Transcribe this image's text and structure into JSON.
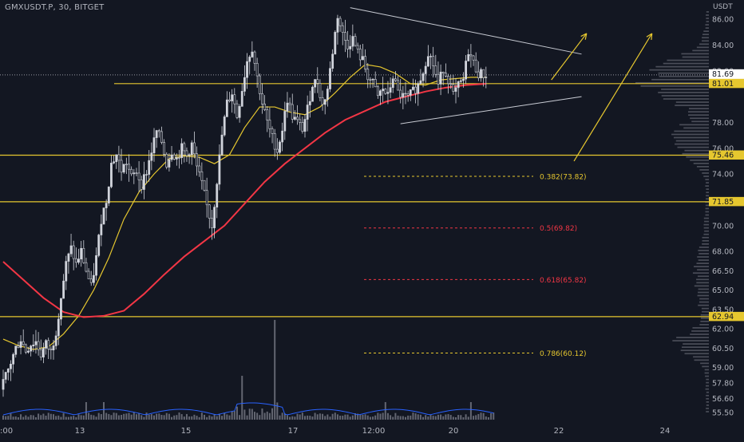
{
  "header": {
    "symbol_line": "GMXUSDT.P, 30, BITGET",
    "axis_unit": "USDT"
  },
  "colors": {
    "background": "#131722",
    "bull": "#d1d4dc",
    "bear": "#d1d4dc",
    "ma_fast": "#e6c72f",
    "ma_slow": "#f23645",
    "horizontal_levels": "#e6c72f",
    "fib_red": "#f23645",
    "fib_yellow": "#e6c72f",
    "trendline": "#c9ccd4",
    "arrow": "#e6c72f",
    "volume": "#787b86",
    "volume_ma": "#2962ff",
    "profile": "#5d606b"
  },
  "chart_data": {
    "type": "candlestick",
    "title": "GMXUSDT.P, 30, BITGET",
    "ylabel": "USDT",
    "ylim": [
      55.2,
      87.0
    ],
    "y_ticks": [
      86.0,
      84.0,
      82.0,
      78.0,
      76.0,
      74.0,
      72.0,
      70.0,
      68.0,
      66.5,
      65.0,
      63.5,
      62.0,
      60.5,
      59.0,
      57.8,
      56.6,
      55.5
    ],
    "x_ticks": [
      ":00",
      "13",
      "15",
      "17",
      "12:00",
      "20",
      "22",
      "24"
    ],
    "price_labels": [
      {
        "value": "81.69",
        "role": "last-price"
      },
      {
        "value": "08:26",
        "role": "countdown"
      },
      {
        "value": "81.01",
        "role": "level"
      },
      {
        "value": "75.46",
        "role": "level"
      },
      {
        "value": "71.85",
        "role": "level"
      },
      {
        "value": "62.94",
        "role": "level"
      }
    ],
    "horizontal_levels": [
      81.01,
      75.46,
      71.85,
      62.94
    ],
    "fib_levels": [
      {
        "label": "0.382(73.82)",
        "value": 73.82,
        "color": "yellow"
      },
      {
        "label": "0.5(69.82)",
        "value": 69.82,
        "color": "red"
      },
      {
        "label": "0.618(65.82)",
        "value": 65.82,
        "color": "red"
      },
      {
        "label": "0.786(60.12)",
        "value": 60.12,
        "color": "yellow"
      }
    ],
    "last_price": 81.69,
    "price_path": [
      [
        0,
        57.3
      ],
      [
        3,
        58.8
      ],
      [
        6,
        60.5
      ],
      [
        8,
        61.2
      ],
      [
        10,
        60.3
      ],
      [
        12,
        60.8
      ],
      [
        14,
        61.0
      ],
      [
        16,
        60.0
      ],
      [
        18,
        60.8
      ],
      [
        20,
        60.2
      ],
      [
        22,
        61.8
      ],
      [
        24,
        64.5
      ],
      [
        26,
        67.0
      ],
      [
        28,
        68.2
      ],
      [
        30,
        67.0
      ],
      [
        32,
        68.0
      ],
      [
        34,
        66.5
      ],
      [
        36,
        65.2
      ],
      [
        38,
        67.5
      ],
      [
        40,
        70.5
      ],
      [
        42,
        72.0
      ],
      [
        44,
        74.8
      ],
      [
        46,
        75.5
      ],
      [
        48,
        74.3
      ],
      [
        50,
        74.9
      ],
      [
        52,
        73.7
      ],
      [
        54,
        74.2
      ],
      [
        56,
        73.2
      ],
      [
        58,
        74.2
      ],
      [
        60,
        75.8
      ],
      [
        62,
        77.3
      ],
      [
        64,
        76.5
      ],
      [
        66,
        74.8
      ],
      [
        68,
        75.8
      ],
      [
        70,
        75.2
      ],
      [
        72,
        76.0
      ],
      [
        74,
        75.4
      ],
      [
        76,
        76.3
      ],
      [
        78,
        74.5
      ],
      [
        80,
        73.2
      ],
      [
        82,
        71.5
      ],
      [
        84,
        70.0
      ],
      [
        86,
        73.5
      ],
      [
        88,
        77.0
      ],
      [
        90,
        79.5
      ],
      [
        92,
        80.3
      ],
      [
        94,
        78.5
      ],
      [
        96,
        80.6
      ],
      [
        98,
        82.8
      ],
      [
        100,
        83.8
      ],
      [
        102,
        81.5
      ],
      [
        104,
        79.5
      ],
      [
        106,
        78.0
      ],
      [
        108,
        76.8
      ],
      [
        110,
        75.8
      ],
      [
        112,
        77.5
      ],
      [
        114,
        79.8
      ],
      [
        116,
        78.5
      ],
      [
        118,
        78.0
      ],
      [
        120,
        77.5
      ],
      [
        122,
        79.0
      ],
      [
        124,
        81.0
      ],
      [
        126,
        81.2
      ],
      [
        128,
        79.3
      ],
      [
        130,
        80.6
      ],
      [
        132,
        83.5
      ],
      [
        134,
        86.3
      ],
      [
        136,
        84.8
      ],
      [
        138,
        84.0
      ],
      [
        140,
        84.5
      ],
      [
        142,
        83.4
      ],
      [
        144,
        82.8
      ],
      [
        146,
        81.6
      ],
      [
        148,
        81.0
      ],
      [
        150,
        80.0
      ],
      [
        152,
        80.6
      ],
      [
        154,
        80.0
      ],
      [
        156,
        81.6
      ],
      [
        158,
        80.3
      ],
      [
        160,
        80.0
      ],
      [
        162,
        79.9
      ],
      [
        164,
        80.4
      ],
      [
        166,
        80.9
      ],
      [
        168,
        82.0
      ],
      [
        170,
        83.5
      ],
      [
        172,
        82.5
      ],
      [
        174,
        80.9
      ],
      [
        176,
        82.2
      ],
      [
        178,
        81.4
      ],
      [
        180,
        80.1
      ],
      [
        182,
        80.8
      ],
      [
        184,
        81.3
      ],
      [
        186,
        83.6
      ],
      [
        188,
        82.6
      ],
      [
        190,
        81.8
      ],
      [
        192,
        81.7
      ]
    ],
    "moving_averages": [
      {
        "name": "",
        "color": "ma_fast",
        "points": [
          [
            0,
            61.2
          ],
          [
            6,
            60.7
          ],
          [
            12,
            60.4
          ],
          [
            18,
            60.6
          ],
          [
            24,
            61.6
          ],
          [
            30,
            63.0
          ],
          [
            36,
            65.0
          ],
          [
            42,
            67.5
          ],
          [
            48,
            70.5
          ],
          [
            54,
            72.6
          ],
          [
            60,
            74.0
          ],
          [
            66,
            75.2
          ],
          [
            72,
            75.4
          ],
          [
            78,
            75.3
          ],
          [
            84,
            74.8
          ],
          [
            90,
            75.5
          ],
          [
            96,
            77.6
          ],
          [
            102,
            79.2
          ],
          [
            108,
            79.2
          ],
          [
            114,
            78.8
          ],
          [
            120,
            78.6
          ],
          [
            126,
            79.2
          ],
          [
            132,
            80.3
          ],
          [
            138,
            81.5
          ],
          [
            144,
            82.5
          ],
          [
            150,
            82.3
          ],
          [
            156,
            81.8
          ],
          [
            162,
            81.0
          ],
          [
            168,
            80.9
          ],
          [
            174,
            81.3
          ],
          [
            180,
            81.4
          ],
          [
            186,
            81.5
          ],
          [
            192,
            81.5
          ]
        ]
      },
      {
        "name": "",
        "color": "ma_slow",
        "points": [
          [
            0,
            67.2
          ],
          [
            8,
            65.8
          ],
          [
            16,
            64.4
          ],
          [
            24,
            63.3
          ],
          [
            32,
            62.9
          ],
          [
            40,
            63.0
          ],
          [
            48,
            63.4
          ],
          [
            56,
            64.7
          ],
          [
            64,
            66.2
          ],
          [
            72,
            67.6
          ],
          [
            80,
            68.8
          ],
          [
            88,
            70.0
          ],
          [
            96,
            71.7
          ],
          [
            104,
            73.4
          ],
          [
            112,
            74.8
          ],
          [
            120,
            76.0
          ],
          [
            128,
            77.2
          ],
          [
            136,
            78.2
          ],
          [
            144,
            78.9
          ],
          [
            152,
            79.6
          ],
          [
            160,
            80.0
          ],
          [
            168,
            80.4
          ],
          [
            176,
            80.7
          ],
          [
            184,
            80.9
          ],
          [
            192,
            81.0
          ]
        ]
      }
    ],
    "triangle": {
      "upper": [
        [
          138,
          86.9
        ],
        [
          230,
          83.3
        ]
      ],
      "lower": [
        [
          158,
          77.9
        ],
        [
          230,
          80.0
        ]
      ]
    },
    "arrows": [
      {
        "from": [
          218,
          81.3
        ],
        "to": [
          232,
          84.9
        ]
      },
      {
        "from": [
          227,
          75.0
        ],
        "to": [
          258,
          84.9
        ]
      }
    ]
  }
}
